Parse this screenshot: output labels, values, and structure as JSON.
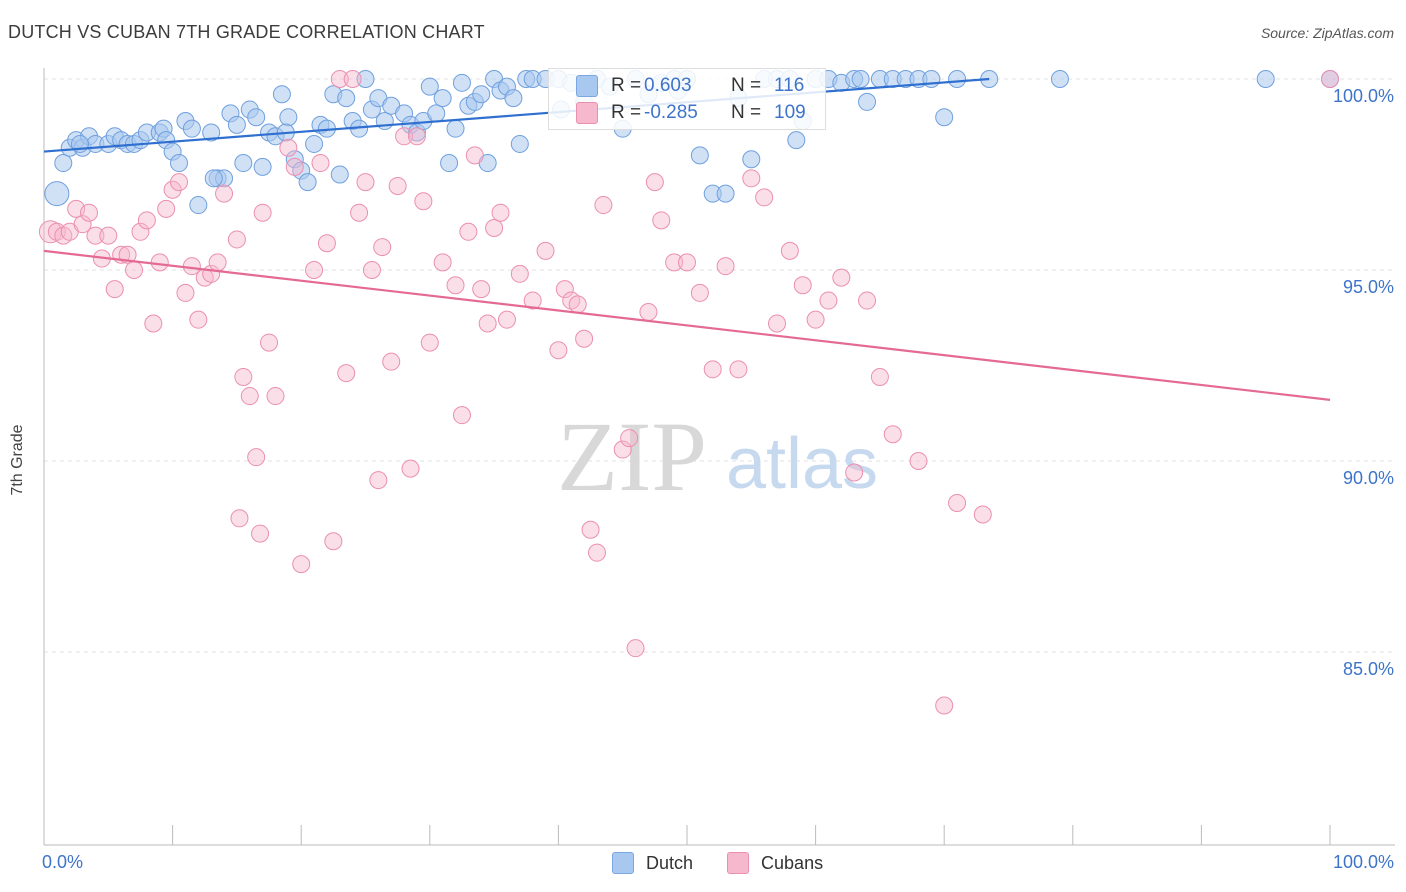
{
  "header": {
    "title": "DUTCH VS CUBAN 7TH GRADE CORRELATION CHART",
    "source": "Source: ZipAtlas.com"
  },
  "watermark": {
    "zip": "ZIP",
    "atlas": "atlas"
  },
  "legend": {
    "rows": [
      {
        "r_label": "R =",
        "r_value": "0.603",
        "n_label": "N =",
        "n_value": "116",
        "color": "#a9c8ef"
      },
      {
        "r_label": "R =",
        "r_value": "-0.285",
        "n_label": "N =",
        "n_value": "109",
        "color": "#f6b8cc"
      }
    ],
    "bottom": [
      {
        "label": "Dutch",
        "color": "#a9c8ef"
      },
      {
        "label": "Cubans",
        "color": "#f6b8cc"
      }
    ]
  },
  "axes": {
    "ylabel": "7th Grade",
    "x_tick_labels": [
      "0.0%",
      "100.0%"
    ],
    "y_tick_labels": [
      "100.0%",
      "95.0%",
      "90.0%",
      "85.0%"
    ]
  },
  "chart_data": {
    "type": "scatter",
    "title": "DUTCH VS CUBAN 7TH GRADE CORRELATION CHART",
    "xlabel": "",
    "ylabel": "7th Grade",
    "xlim": [
      0,
      100
    ],
    "ylim": [
      80.5,
      100.4
    ],
    "y_ticks": [
      100,
      95,
      90,
      85
    ],
    "grid": "horizontal dashed",
    "colors": {
      "dutch_fill": "#a9c8ef",
      "dutch_line": "#2f6fd0",
      "cubans_fill": "#f6b8cc",
      "cubans_line": "#e46a94"
    },
    "series": [
      {
        "name": "Dutch",
        "trend": {
          "x": [
            0,
            73.5
          ],
          "y": [
            98.1,
            100.0
          ]
        },
        "points": [
          [
            1,
            97.0
          ],
          [
            1.5,
            97.8
          ],
          [
            2,
            98.2
          ],
          [
            2.5,
            98.4
          ],
          [
            3,
            98.2
          ],
          [
            3.5,
            98.5
          ],
          [
            4,
            98.3
          ],
          [
            5,
            98.3
          ],
          [
            5.5,
            98.5
          ],
          [
            6,
            98.4
          ],
          [
            6.5,
            98.3
          ],
          [
            7,
            98.3
          ],
          [
            7.5,
            98.4
          ],
          [
            8,
            98.6
          ],
          [
            9,
            98.6
          ],
          [
            9.3,
            98.7
          ],
          [
            9.5,
            98.4
          ],
          [
            10,
            98.1
          ],
          [
            10.5,
            97.8
          ],
          [
            11,
            98.9
          ],
          [
            11.5,
            98.7
          ],
          [
            12,
            96.7
          ],
          [
            13,
            98.6
          ],
          [
            13.5,
            97.4
          ],
          [
            14,
            97.4
          ],
          [
            14.5,
            99.1
          ],
          [
            15,
            98.8
          ],
          [
            15.5,
            97.8
          ],
          [
            16,
            99.2
          ],
          [
            16.5,
            99.0
          ],
          [
            17,
            97.7
          ],
          [
            17.5,
            98.6
          ],
          [
            18,
            98.5
          ],
          [
            18.5,
            99.6
          ],
          [
            19,
            99.0
          ],
          [
            19.5,
            97.9
          ],
          [
            20,
            97.6
          ],
          [
            20.5,
            97.3
          ],
          [
            21,
            98.3
          ],
          [
            21.5,
            98.8
          ],
          [
            22,
            98.7
          ],
          [
            22.5,
            99.6
          ],
          [
            23,
            97.5
          ],
          [
            23.5,
            99.5
          ],
          [
            24,
            98.9
          ],
          [
            24.5,
            98.7
          ],
          [
            25,
            100.0
          ],
          [
            25.5,
            99.2
          ],
          [
            26,
            99.5
          ],
          [
            26.5,
            98.9
          ],
          [
            27,
            99.3
          ],
          [
            28,
            99.1
          ],
          [
            28.5,
            98.8
          ],
          [
            29,
            98.6
          ],
          [
            29.5,
            98.9
          ],
          [
            30,
            99.8
          ],
          [
            30.5,
            99.1
          ],
          [
            31,
            99.5
          ],
          [
            31.5,
            97.8
          ],
          [
            32,
            98.7
          ],
          [
            32.5,
            99.9
          ],
          [
            33,
            99.3
          ],
          [
            33.5,
            99.4
          ],
          [
            34,
            99.6
          ],
          [
            34.5,
            97.8
          ],
          [
            35,
            100.0
          ],
          [
            35.5,
            99.7
          ],
          [
            36,
            99.8
          ],
          [
            36.5,
            99.5
          ],
          [
            37,
            98.3
          ],
          [
            37.5,
            100.0
          ],
          [
            38,
            100.0
          ],
          [
            39,
            100.0
          ],
          [
            40,
            100.0
          ],
          [
            41,
            99.9
          ],
          [
            42,
            99.4
          ],
          [
            43,
            100.0
          ],
          [
            44,
            99.8
          ],
          [
            45,
            98.7
          ],
          [
            46,
            100.0
          ],
          [
            47,
            99.6
          ],
          [
            48,
            99.9
          ],
          [
            49,
            100.0
          ],
          [
            50,
            100.0
          ],
          [
            51,
            98.0
          ],
          [
            52,
            97.0
          ],
          [
            53,
            97.0
          ],
          [
            54,
            99.5
          ],
          [
            55,
            97.9
          ],
          [
            56,
            100.0
          ],
          [
            57,
            100.0
          ],
          [
            58,
            100.0
          ],
          [
            59,
            98.9
          ],
          [
            60,
            100.0
          ],
          [
            61,
            100.0
          ],
          [
            62,
            99.9
          ],
          [
            63,
            100.0
          ],
          [
            63.5,
            100.0
          ],
          [
            64,
            99.4
          ],
          [
            65,
            100.0
          ],
          [
            66,
            100.0
          ],
          [
            67,
            100.0
          ],
          [
            68,
            100.0
          ],
          [
            69,
            100.0
          ],
          [
            70,
            99.0
          ],
          [
            71,
            100.0
          ],
          [
            73.5,
            100.0
          ],
          [
            79,
            100.0
          ],
          [
            95,
            100.0
          ],
          [
            100,
            100.0
          ],
          [
            18.8,
            98.6
          ],
          [
            40.2,
            99.2
          ],
          [
            49.3,
            99.7
          ],
          [
            13.2,
            97.4
          ],
          [
            58.5,
            98.4
          ],
          [
            2.8,
            98.3
          ]
        ]
      },
      {
        "name": "Cubans",
        "trend": {
          "x": [
            0,
            100
          ],
          "y": [
            95.5,
            91.6
          ]
        },
        "points": [
          [
            0.5,
            96.0
          ],
          [
            1,
            96.0
          ],
          [
            1.5,
            95.9
          ],
          [
            2,
            96.0
          ],
          [
            2.5,
            96.6
          ],
          [
            3,
            96.2
          ],
          [
            3.5,
            96.5
          ],
          [
            4,
            95.9
          ],
          [
            4.5,
            95.3
          ],
          [
            5,
            95.9
          ],
          [
            5.5,
            94.5
          ],
          [
            6,
            95.4
          ],
          [
            6.5,
            95.4
          ],
          [
            7,
            95.0
          ],
          [
            7.5,
            96.0
          ],
          [
            8,
            96.3
          ],
          [
            8.5,
            93.6
          ],
          [
            9,
            95.2
          ],
          [
            9.5,
            96.6
          ],
          [
            10,
            97.1
          ],
          [
            10.5,
            97.3
          ],
          [
            11,
            94.4
          ],
          [
            11.5,
            95.1
          ],
          [
            12,
            93.7
          ],
          [
            12.5,
            94.8
          ],
          [
            13,
            94.9
          ],
          [
            13.5,
            95.2
          ],
          [
            14,
            97.0
          ],
          [
            15,
            95.8
          ],
          [
            15.5,
            92.2
          ],
          [
            16,
            91.7
          ],
          [
            16.5,
            90.1
          ],
          [
            17,
            96.5
          ],
          [
            17.5,
            93.1
          ],
          [
            18,
            91.7
          ],
          [
            19,
            98.2
          ],
          [
            19.5,
            97.7
          ],
          [
            20,
            87.3
          ],
          [
            21,
            95.0
          ],
          [
            21.5,
            97.8
          ],
          [
            22,
            95.7
          ],
          [
            22.5,
            87.9
          ],
          [
            23,
            100.0
          ],
          [
            23.5,
            92.3
          ],
          [
            24,
            100.0
          ],
          [
            24.5,
            96.5
          ],
          [
            25,
            97.3
          ],
          [
            25.5,
            95.0
          ],
          [
            26,
            89.5
          ],
          [
            27,
            92.6
          ],
          [
            27.5,
            97.2
          ],
          [
            28,
            98.5
          ],
          [
            28.5,
            89.8
          ],
          [
            29,
            98.5
          ],
          [
            29.5,
            96.8
          ],
          [
            30,
            93.1
          ],
          [
            31,
            95.2
          ],
          [
            32,
            94.6
          ],
          [
            32.5,
            91.2
          ],
          [
            33,
            96.0
          ],
          [
            33.5,
            98.0
          ],
          [
            34,
            94.5
          ],
          [
            34.5,
            93.6
          ],
          [
            35,
            96.1
          ],
          [
            35.5,
            96.5
          ],
          [
            36,
            93.7
          ],
          [
            37,
            94.9
          ],
          [
            38,
            94.2
          ],
          [
            39,
            95.5
          ],
          [
            40,
            92.9
          ],
          [
            40.5,
            94.5
          ],
          [
            41,
            94.2
          ],
          [
            41.5,
            94.1
          ],
          [
            42,
            93.2
          ],
          [
            42.5,
            88.2
          ],
          [
            43,
            87.6
          ],
          [
            43.5,
            96.7
          ],
          [
            45,
            90.3
          ],
          [
            45.5,
            90.6
          ],
          [
            46,
            85.1
          ],
          [
            47,
            93.9
          ],
          [
            47.5,
            97.3
          ],
          [
            48,
            96.3
          ],
          [
            49,
            95.2
          ],
          [
            50,
            95.2
          ],
          [
            51,
            94.4
          ],
          [
            52,
            92.4
          ],
          [
            53,
            95.1
          ],
          [
            54,
            92.4
          ],
          [
            55,
            97.4
          ],
          [
            56,
            96.9
          ],
          [
            57,
            93.6
          ],
          [
            58,
            95.5
          ],
          [
            59,
            94.6
          ],
          [
            60,
            93.7
          ],
          [
            61,
            94.2
          ],
          [
            62,
            94.8
          ],
          [
            63,
            89.7
          ],
          [
            64,
            94.2
          ],
          [
            65,
            92.2
          ],
          [
            66,
            90.7
          ],
          [
            68,
            90.0
          ],
          [
            70,
            83.6
          ],
          [
            71,
            88.9
          ],
          [
            73,
            88.6
          ],
          [
            100,
            100.0
          ],
          [
            15.2,
            88.5
          ],
          [
            16.8,
            88.1
          ],
          [
            26.3,
            95.6
          ]
        ]
      }
    ]
  }
}
